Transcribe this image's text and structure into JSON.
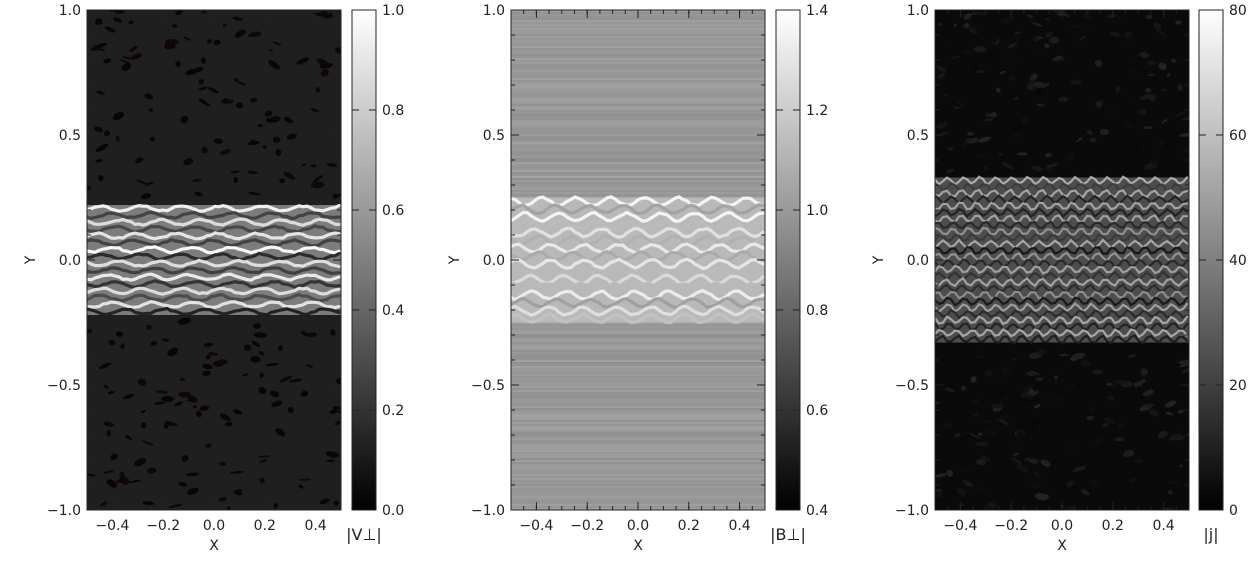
{
  "chart_data": [
    {
      "type": "heatmap",
      "xlabel": "X",
      "ylabel": "Y",
      "xlim": [
        -0.5,
        0.5
      ],
      "ylim": [
        -1.0,
        1.0
      ],
      "xticks": [
        "−0.4",
        "−0.2",
        "0.0",
        "0.2",
        "0.4"
      ],
      "xtick_values": [
        -0.4,
        -0.2,
        0.0,
        0.2,
        0.4
      ],
      "yticks": [
        "−1.0",
        "−0.5",
        "0.0",
        "0.5",
        "1.0"
      ],
      "ytick_values": [
        -1.0,
        -0.5,
        0.0,
        0.5,
        1.0
      ],
      "colorbar": {
        "label": "|V⊥|",
        "range": [
          0.0,
          1.0
        ],
        "ticks": [
          "0.0",
          "0.2",
          "0.4",
          "0.6",
          "0.8",
          "1.0"
        ],
        "tick_values": [
          0.0,
          0.2,
          0.4,
          0.6,
          0.8,
          1.0
        ]
      },
      "colormap": "grayscale",
      "band_half_width_y": 0.22,
      "band_level": 0.85,
      "background_level": 0.12
    },
    {
      "type": "heatmap",
      "xlabel": "X",
      "ylabel": "Y",
      "xlim": [
        -0.5,
        0.5
      ],
      "ylim": [
        -1.0,
        1.0
      ],
      "xticks": [
        "−0.4",
        "−0.2",
        "0.0",
        "0.2",
        "0.4"
      ],
      "xtick_values": [
        -0.4,
        -0.2,
        0.0,
        0.2,
        0.4
      ],
      "yticks": [
        "−1.0",
        "−0.5",
        "0.0",
        "0.5",
        "1.0"
      ],
      "ytick_values": [
        -1.0,
        -0.5,
        0.0,
        0.5,
        1.0
      ],
      "colorbar": {
        "label": "|B⊥|",
        "range": [
          0.4,
          1.4
        ],
        "ticks": [
          "0.4",
          "0.6",
          "0.8",
          "1.0",
          "1.2",
          "1.4"
        ],
        "tick_values": [
          0.4,
          0.6,
          0.8,
          1.0,
          1.2,
          1.4
        ]
      },
      "colormap": "grayscale",
      "band_half_width_y": 0.25,
      "band_level": 1.25,
      "background_level": 1.0
    },
    {
      "type": "heatmap",
      "xlabel": "X",
      "ylabel": "Y",
      "xlim": [
        -0.5,
        0.5
      ],
      "ylim": [
        -1.0,
        1.0
      ],
      "xticks": [
        "−0.4",
        "−0.2",
        "0.0",
        "0.2",
        "0.4"
      ],
      "xtick_values": [
        -0.4,
        -0.2,
        0.0,
        0.2,
        0.4
      ],
      "yticks": [
        "−1.0",
        "−0.5",
        "0.0",
        "0.5",
        "1.0"
      ],
      "ytick_values": [
        -1.0,
        -0.5,
        0.0,
        0.5,
        1.0
      ],
      "colorbar": {
        "label": "|j|",
        "range": [
          0,
          80
        ],
        "ticks": [
          "0",
          "20",
          "40",
          "60",
          "80"
        ],
        "tick_values": [
          0,
          20,
          40,
          60,
          80
        ]
      },
      "colormap": "grayscale",
      "band_half_width_y": 0.33,
      "band_level": 45,
      "background_level": 3
    }
  ]
}
